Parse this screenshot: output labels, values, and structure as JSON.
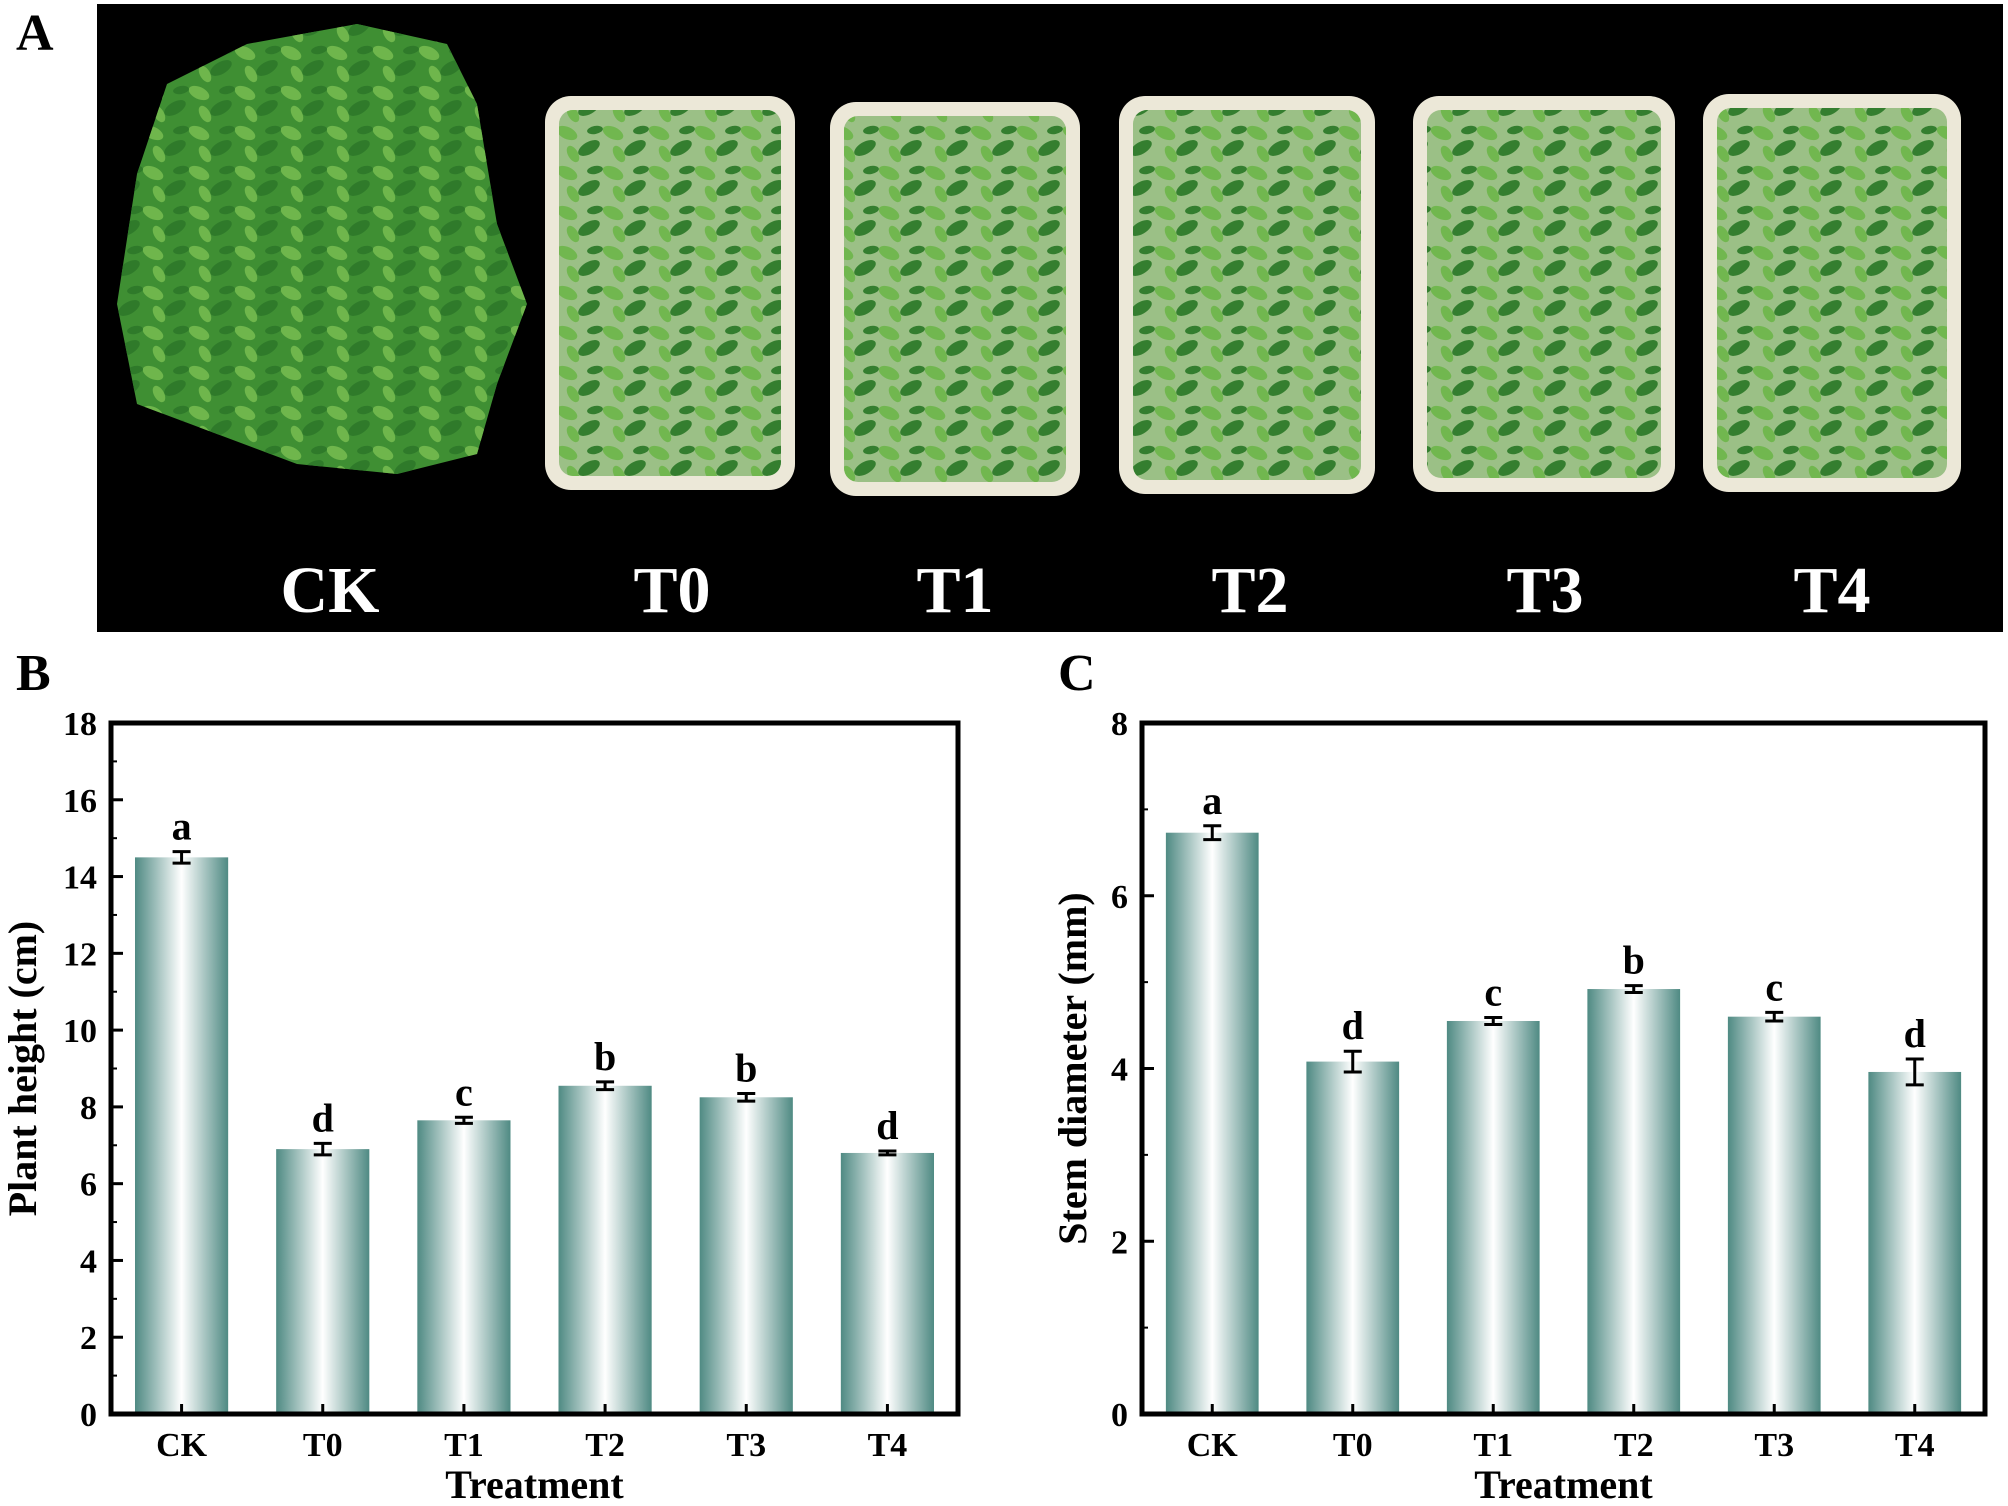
{
  "panels": {
    "a": "A",
    "b": "B",
    "c": "C"
  },
  "photo": {
    "tray_labels": [
      "CK",
      "T0",
      "T1",
      "T2",
      "T3",
      "T4"
    ],
    "colors": {
      "background": "#000000",
      "tray": "#ece8d8",
      "leaf_dark": "#2f7a2a",
      "leaf_light": "#6fb64c",
      "label": "#ffffff"
    }
  },
  "chart_data": [
    {
      "type": "bar",
      "categories": [
        "CK",
        "T0",
        "T1",
        "T2",
        "T3",
        "T4"
      ],
      "values": [
        14.5,
        6.9,
        7.65,
        8.55,
        8.25,
        6.8
      ],
      "errors": [
        0.15,
        0.15,
        0.08,
        0.1,
        0.1,
        0.05
      ],
      "letters": [
        "a",
        "d",
        "c",
        "b",
        "b",
        "d"
      ],
      "xlabel": "Treatment",
      "ylabel": "Plant height (cm)",
      "ylim": [
        0,
        18
      ],
      "yticks": [
        "0",
        "2",
        "4",
        "6",
        "8",
        "10",
        "12",
        "14",
        "16",
        "18"
      ],
      "bar_color": "#4f8a83"
    },
    {
      "type": "bar",
      "categories": [
        "CK",
        "T0",
        "T1",
        "T2",
        "T3",
        "T4"
      ],
      "values": [
        6.73,
        4.08,
        4.55,
        4.92,
        4.6,
        3.96
      ],
      "errors": [
        0.08,
        0.12,
        0.04,
        0.04,
        0.05,
        0.15
      ],
      "letters": [
        "a",
        "d",
        "c",
        "b",
        "c",
        "d"
      ],
      "xlabel": "Treatment",
      "ylabel": "Stem diameter (mm)",
      "ylim": [
        0,
        8
      ],
      "yticks": [
        "0",
        "2",
        "4",
        "6",
        "8"
      ],
      "bar_color": "#4f8a83"
    }
  ]
}
